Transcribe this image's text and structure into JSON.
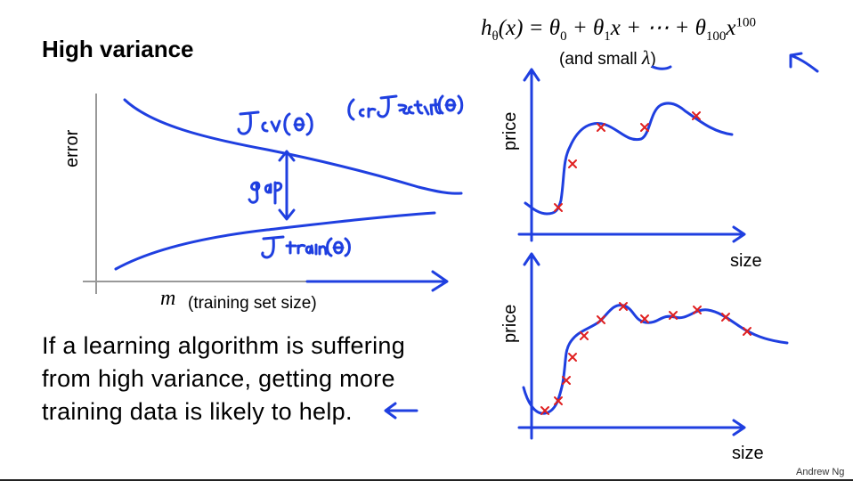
{
  "slide": {
    "title": "High variance",
    "formula": {
      "lhs": "h",
      "lhs_sub": "θ",
      "arg": "(x) = θ",
      "t0_sub": "0",
      "plus1": " + θ",
      "t1_sub": "1",
      "mid": "x + ⋯ + θ",
      "t100_sub": "100",
      "x": "x",
      "x_sup": "100"
    },
    "note_prefix": "(and small ",
    "note_lambda": "λ",
    "note_suffix": ")",
    "learning_curve": {
      "y_label": "error",
      "x_var": "m",
      "x_label": "(training set size)",
      "handwritten": {
        "jcv": "Jcv(θ)",
        "jtest": "(or Jtest(θ)",
        "jtrain": "Jtrain(θ)",
        "gap": "gap"
      }
    },
    "body": "If a learning algorithm is suffering from high variance, getting more training data is likely to help.",
    "plot_top": {
      "y_label": "price",
      "x_label": "size"
    },
    "plot_bottom": {
      "y_label": "price",
      "x_label": "size"
    },
    "credit": "Andrew Ng",
    "ink_color": "#1f3fe0",
    "marker_color": "#e02020"
  }
}
